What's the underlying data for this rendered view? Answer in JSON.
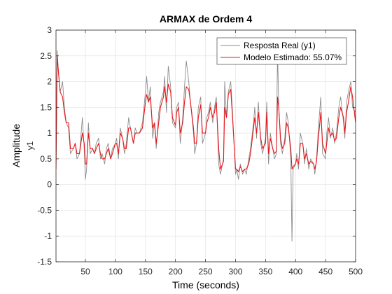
{
  "chart_data": {
    "type": "line",
    "title": "ARMAX de Ordem 4",
    "xlabel": "Time (seconds)",
    "ylabel": "Amplitude",
    "ylabel_sub": "y1",
    "xlim": [
      1,
      500
    ],
    "ylim": [
      -1.5,
      3
    ],
    "x_ticks": [
      50,
      100,
      150,
      200,
      250,
      300,
      350,
      400,
      450,
      500
    ],
    "y_ticks": [
      -1.5,
      -1,
      -0.5,
      0,
      0.5,
      1,
      1.5,
      2,
      2.5,
      3
    ],
    "grid": true,
    "legend_position": "top-right",
    "series": [
      {
        "name": "Resposta Real (y1)",
        "color": "#8c8c8c",
        "x": [
          1,
          3,
          5,
          8,
          12,
          15,
          18,
          22,
          25,
          30,
          33,
          36,
          40,
          45,
          48,
          50,
          52,
          55,
          58,
          62,
          65,
          68,
          72,
          75,
          78,
          82,
          85,
          88,
          92,
          95,
          100,
          102,
          105,
          108,
          112,
          115,
          118,
          122,
          125,
          130,
          133,
          136,
          140,
          145,
          150,
          152,
          155,
          158,
          162,
          165,
          168,
          172,
          175,
          180,
          182,
          185,
          188,
          192,
          195,
          200,
          202,
          205,
          208,
          212,
          215,
          218,
          222,
          225,
          230,
          232,
          235,
          238,
          242,
          245,
          250,
          252,
          255,
          258,
          262,
          265,
          268,
          272,
          275,
          280,
          282,
          285,
          288,
          292,
          295,
          300,
          302,
          305,
          308,
          312,
          315,
          318,
          322,
          325,
          330,
          332,
          335,
          338,
          342,
          345,
          350,
          352,
          355,
          358,
          362,
          365,
          368,
          370,
          372,
          375,
          378,
          382,
          385,
          388,
          392,
          394,
          396,
          400,
          402,
          405,
          408,
          412,
          415,
          418,
          422,
          425,
          430,
          432,
          435,
          438,
          442,
          445,
          450,
          452,
          455,
          458,
          462,
          465,
          468,
          472,
          475,
          480,
          482,
          485,
          488,
          492,
          495,
          500
        ],
        "y": [
          0.4,
          2.6,
          2.2,
          1.8,
          2.0,
          1.5,
          1.2,
          1.1,
          0.6,
          0.7,
          0.8,
          0.5,
          0.6,
          1.3,
          0.7,
          0.1,
          0.3,
          1.2,
          0.6,
          0.7,
          0.6,
          0.8,
          0.9,
          0.5,
          0.6,
          0.4,
          0.7,
          0.8,
          0.5,
          0.7,
          0.8,
          0.9,
          0.5,
          1.1,
          0.9,
          0.6,
          0.8,
          1.3,
          1.1,
          0.8,
          1.1,
          1.0,
          1.0,
          1.2,
          1.8,
          2.1,
          1.6,
          1.9,
          0.9,
          1.2,
          0.7,
          1.4,
          1.6,
          1.8,
          2.1,
          1.4,
          2.3,
          1.9,
          1.2,
          1.1,
          1.5,
          1.6,
          0.8,
          1.3,
          1.9,
          2.4,
          2.0,
          1.6,
          1.0,
          0.6,
          0.8,
          1.5,
          1.7,
          0.8,
          1.0,
          1.3,
          1.4,
          1.6,
          1.2,
          1.5,
          1.7,
          0.4,
          0.2,
          0.5,
          2.0,
          1.3,
          1.8,
          2.0,
          1.4,
          0.2,
          0.3,
          0.1,
          0.4,
          0.2,
          0.3,
          0.2,
          0.5,
          0.7,
          1.2,
          1.5,
          0.9,
          1.6,
          0.8,
          0.6,
          0.9,
          1.6,
          0.4,
          1.0,
          0.7,
          0.5,
          0.6,
          2.6,
          1.5,
          0.8,
          0.6,
          0.9,
          1.4,
          1.2,
          0.5,
          -1.1,
          0.3,
          0.4,
          0.6,
          0.3,
          1.0,
          0.8,
          0.4,
          0.7,
          0.3,
          0.5,
          0.4,
          0.2,
          0.5,
          1.1,
          1.7,
          0.6,
          0.5,
          1.0,
          1.3,
          0.9,
          1.1,
          0.8,
          1.0,
          1.5,
          1.7,
          1.2,
          0.9,
          1.6,
          1.8,
          2.0,
          1.5,
          1.4
        ]
      },
      {
        "name": "Modelo Estimado: 55.07%",
        "color": "#e8171c",
        "x": [
          1,
          3,
          5,
          8,
          12,
          15,
          18,
          22,
          25,
          30,
          33,
          36,
          40,
          45,
          48,
          50,
          52,
          55,
          58,
          62,
          65,
          68,
          72,
          75,
          78,
          82,
          85,
          88,
          92,
          95,
          100,
          102,
          105,
          108,
          112,
          115,
          118,
          122,
          125,
          130,
          133,
          136,
          140,
          145,
          150,
          152,
          155,
          158,
          162,
          165,
          168,
          172,
          175,
          180,
          182,
          185,
          188,
          192,
          195,
          200,
          202,
          205,
          208,
          212,
          215,
          218,
          222,
          225,
          230,
          232,
          235,
          238,
          242,
          245,
          250,
          252,
          255,
          258,
          262,
          265,
          268,
          272,
          275,
          280,
          282,
          285,
          288,
          292,
          295,
          300,
          302,
          305,
          308,
          312,
          315,
          318,
          322,
          325,
          330,
          332,
          335,
          338,
          342,
          345,
          350,
          352,
          355,
          358,
          362,
          365,
          368,
          370,
          372,
          375,
          378,
          382,
          385,
          388,
          392,
          394,
          396,
          400,
          402,
          405,
          408,
          412,
          415,
          418,
          422,
          425,
          430,
          432,
          435,
          438,
          442,
          445,
          450,
          452,
          455,
          458,
          462,
          465,
          468,
          472,
          475,
          480,
          482,
          485,
          488,
          492,
          495,
          500
        ],
        "y": [
          0.3,
          2.5,
          2.2,
          1.8,
          1.7,
          1.4,
          1.2,
          1.2,
          0.7,
          0.7,
          0.8,
          0.6,
          0.6,
          1.0,
          0.8,
          0.4,
          0.4,
          1.0,
          0.7,
          0.7,
          0.6,
          0.7,
          0.8,
          0.6,
          0.5,
          0.5,
          0.6,
          0.7,
          0.5,
          0.6,
          0.8,
          0.8,
          0.6,
          1.0,
          0.9,
          0.7,
          0.7,
          1.1,
          1.1,
          0.8,
          1.0,
          1.0,
          1.0,
          1.1,
          1.6,
          1.75,
          1.6,
          1.7,
          1.1,
          1.2,
          0.8,
          1.2,
          1.5,
          1.7,
          1.9,
          1.6,
          1.95,
          1.8,
          1.3,
          1.15,
          1.4,
          1.5,
          1.0,
          1.2,
          1.6,
          1.9,
          1.85,
          1.6,
          1.1,
          0.8,
          0.8,
          1.3,
          1.55,
          1.0,
          1.0,
          1.2,
          1.3,
          1.5,
          1.3,
          1.4,
          1.6,
          0.7,
          0.3,
          0.45,
          1.5,
          1.3,
          1.75,
          1.85,
          1.3,
          0.3,
          0.3,
          0.25,
          0.35,
          0.25,
          0.3,
          0.3,
          0.4,
          0.6,
          1.1,
          1.3,
          1.0,
          1.4,
          0.9,
          0.7,
          0.8,
          1.4,
          0.6,
          0.9,
          0.7,
          0.6,
          0.65,
          1.7,
          1.5,
          0.9,
          0.7,
          0.8,
          1.2,
          1.1,
          0.7,
          0.3,
          0.35,
          0.4,
          0.5,
          0.4,
          0.8,
          0.8,
          0.5,
          0.6,
          0.4,
          0.45,
          0.4,
          0.3,
          0.45,
          0.9,
          1.4,
          0.8,
          0.6,
          0.8,
          1.1,
          0.95,
          1.0,
          0.85,
          0.9,
          1.3,
          1.5,
          1.3,
          1.0,
          1.4,
          1.6,
          1.9,
          1.7,
          1.2
        ]
      }
    ]
  }
}
